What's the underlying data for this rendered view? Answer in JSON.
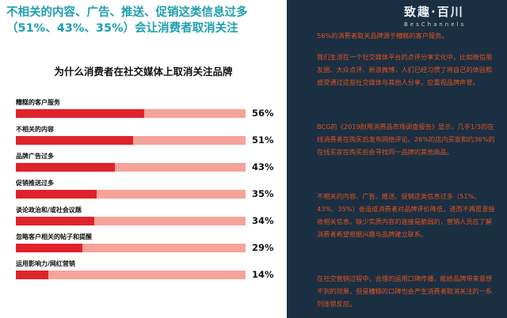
{
  "headline": "不相关的内容、广告、推送、促销这类信息过多（51%、43%、35%）会让消费者取消关注",
  "logo": {
    "main": "致趣·百川",
    "sub": "BesChannels"
  },
  "chart_data": {
    "type": "bar",
    "title": "为什么消费者在社交媒体上取消关注品牌",
    "categories": [
      "糟糕的客户服务",
      "不相关的内容",
      "品牌广告过多",
      "促销推送过多",
      "谈论政治和/或社会议题",
      "忽略客户相关的帖子和提醒",
      "运用影响力/网红营销"
    ],
    "values": [
      56,
      51,
      43,
      35,
      34,
      29,
      14
    ],
    "value_labels": [
      "56%",
      "51%",
      "43%",
      "35%",
      "34%",
      "29%",
      "14%"
    ],
    "xlim": [
      0,
      100
    ],
    "colors": {
      "fill": "#e0232a",
      "track": "#f5a39a"
    }
  },
  "right_paragraphs": [
    "56%的消费者取关品牌源于糟糕的客户服务。",
    "我们生活在一个社交媒体平台的点评分享文化中，比如微信朋友圈、大众点评、新浪微博，人们已经习惯了将自己的体验和感受通过这些社交媒体与其他人分享，应重视品牌声誉。",
    "BCG的《2019耐用消费品市场调查报告》显示，几乎1/3的在线消费者在购买后发布网络评论。26%的店内买家和约36%的在线买家在购买后会寻找同一品牌的其他商品。",
    "不相关的内容、广告、推送、促销这类信息过多（51%、43%、35%）会造成消费者对品牌评价降低，进而不再愿意接收相关信息。缺少实质内容的连接是脆弱的，营销人员应了解消费者希望根据兴趣与品牌建立联系。",
    "在社交营销过程中，合理的运用口碑传播，能给品牌带来意想不到的效果，但是糟糕的口碑也会产生消费者取消关注的一系列连锁反应。"
  ]
}
